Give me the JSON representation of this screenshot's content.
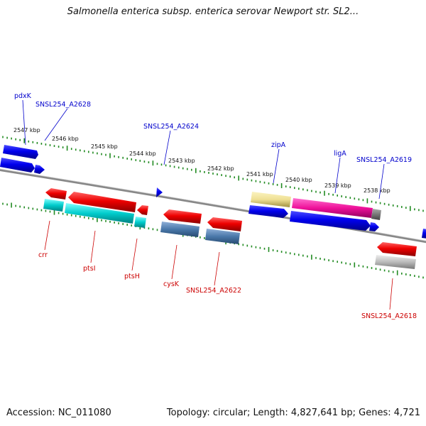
{
  "title": "Salmonella enterica subsp. enterica serovar Newport str. SL2...",
  "footer": {
    "accession": "Accession: NC_011080",
    "summary": "Topology: circular; Length: 4,827,641 bp; Genes: 4,721"
  },
  "colors": {
    "forward_label": "#0000cc",
    "reverse_label": "#cc0000",
    "backbone": "#808080",
    "tick": "#228b22"
  },
  "tick_labels": [
    "2547 kbp",
    "2546 kbp",
    "2545 kbp",
    "2544 kbp",
    "2543 kbp",
    "2542 kbp",
    "2541 kbp",
    "2540 kbp",
    "2539 kbp",
    "2538 kbp"
  ],
  "gene_labels": {
    "pdxK": "pdxK",
    "a2628": "SNSL254_A2628",
    "a2624": "SNSL254_A2624",
    "zipA": "zipA",
    "ligA": "ligA",
    "a2619": "SNSL254_A2619",
    "crr": "crr",
    "ptsI": "ptsI",
    "ptsH": "ptsH",
    "cysK": "cysK",
    "a2622": "SNSL254_A2622",
    "a2618": "SNSL254_A2618"
  }
}
